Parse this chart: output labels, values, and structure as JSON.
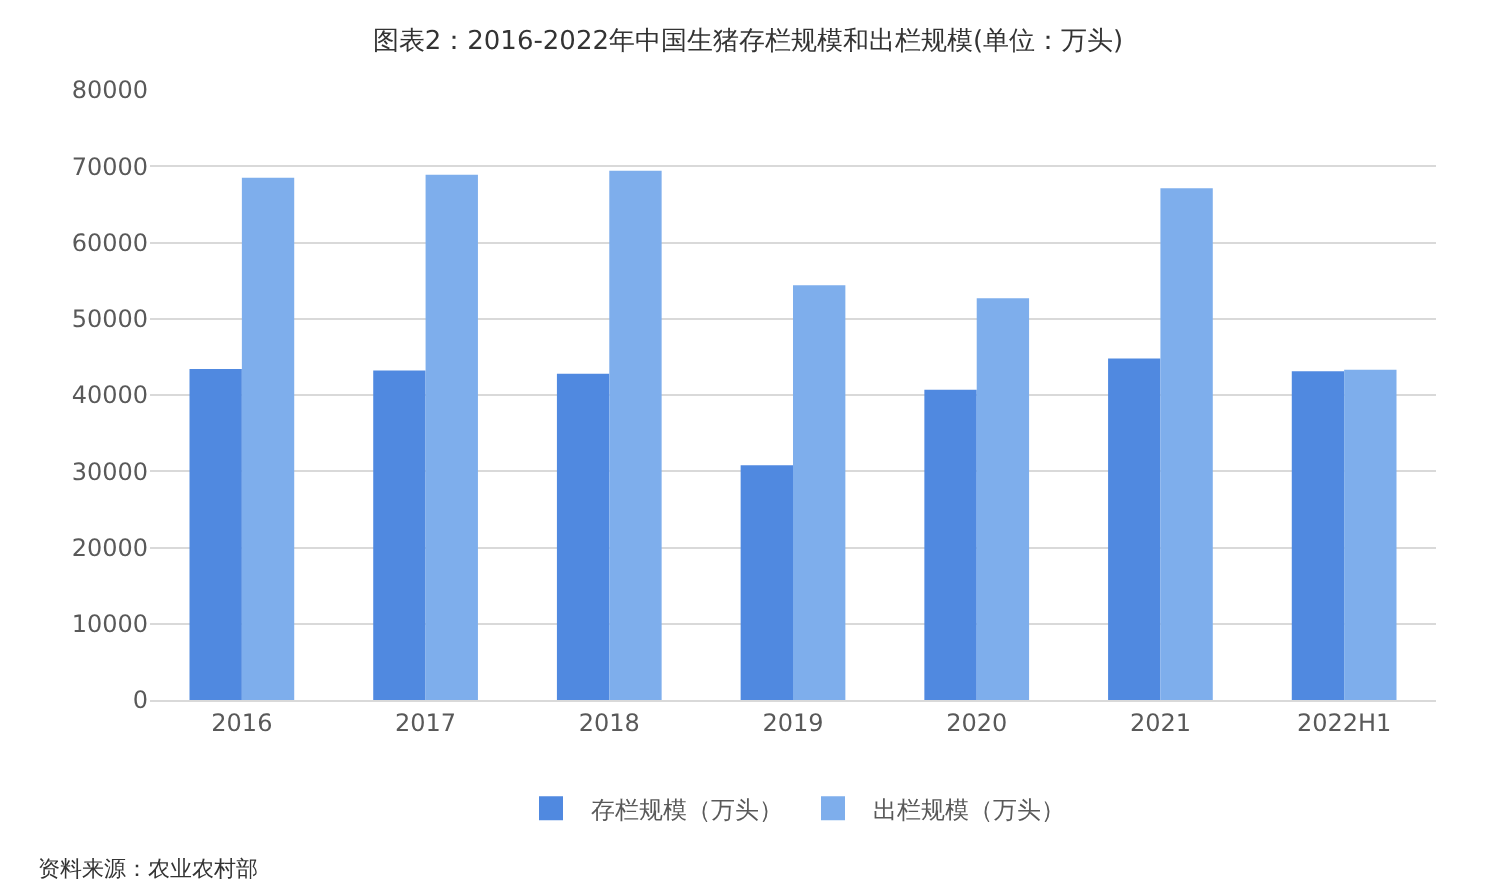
{
  "chart_data": {
    "type": "bar",
    "title": "图表2：2016-2022年中国生猪存栏规模和出栏规模(单位：万头)",
    "categories": [
      "2016",
      "2017",
      "2018",
      "2019",
      "2020",
      "2021",
      "2022H1"
    ],
    "series": [
      {
        "name": "存栏规模（万头）",
        "color": "#5089e0",
        "values": [
          43400,
          43200,
          42800,
          30800,
          40700,
          44800,
          43100
        ]
      },
      {
        "name": "出栏规模（万头）",
        "color": "#7eaeec",
        "values": [
          68500,
          68900,
          69400,
          54400,
          52700,
          67100,
          43300
        ]
      }
    ],
    "ylim": [
      0,
      80000
    ],
    "yticks": [
      0,
      10000,
      20000,
      30000,
      40000,
      50000,
      60000,
      70000,
      80000
    ],
    "grid": "y",
    "legend": "bottom",
    "annotations": [
      "资料来源：农业农村部"
    ]
  }
}
